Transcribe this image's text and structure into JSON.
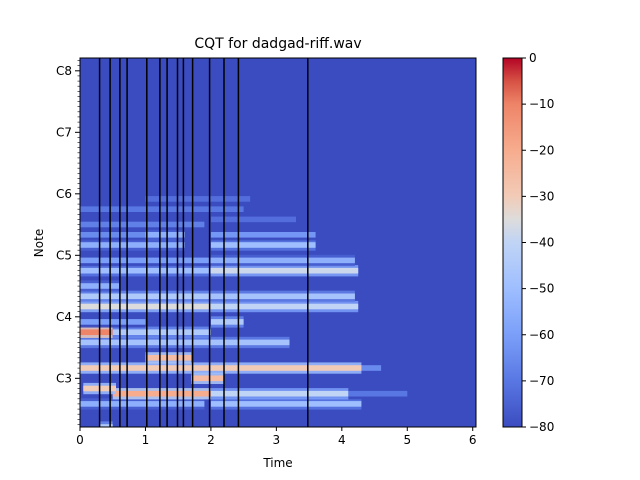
{
  "chart_data": {
    "type": "heatmap",
    "title": "CQT for dadgad-riff.wav",
    "xlabel": "Time",
    "ylabel": "Note",
    "xlim": [
      0,
      6.05
    ],
    "x_ticks": [
      {
        "value": 0,
        "label": "0"
      },
      {
        "value": 1,
        "label": "1"
      },
      {
        "value": 2,
        "label": "2"
      },
      {
        "value": 3,
        "label": "3"
      },
      {
        "value": 4,
        "label": "4"
      },
      {
        "value": 5,
        "label": "5"
      },
      {
        "value": 6,
        "label": "6"
      }
    ],
    "y_ticks": [
      {
        "midi": 48,
        "label": "C3"
      },
      {
        "midi": 60,
        "label": "C4"
      },
      {
        "midi": 72,
        "label": "C5"
      },
      {
        "midi": 84,
        "label": "C6"
      },
      {
        "midi": 96,
        "label": "C7"
      },
      {
        "midi": 108,
        "label": "C8"
      }
    ],
    "ylim_midi": [
      38.5,
      110.5
    ],
    "colorbar": {
      "colormap": "coolwarm",
      "range": [
        -80,
        0
      ],
      "ticks": [
        0,
        -10,
        -20,
        -30,
        -40,
        -50,
        -60,
        -70,
        -80
      ],
      "tick_labels": [
        "0",
        "−10",
        "−20",
        "−30",
        "−40",
        "−50",
        "−60",
        "−70",
        "−80"
      ]
    },
    "onset_markers": [
      0.3,
      0.46,
      0.61,
      0.72,
      1.02,
      1.22,
      1.33,
      1.49,
      1.58,
      1.72,
      1.98,
      2.2,
      2.42,
      3.48
    ],
    "marker_color": "#000000",
    "partials": [
      {
        "midi": 38.5,
        "start": 0.3,
        "end": 0.5,
        "db": -45
      },
      {
        "midi": 43,
        "start": 0.0,
        "end": 1.9,
        "db": -55
      },
      {
        "midi": 43,
        "start": 2.0,
        "end": 4.3,
        "db": -50
      },
      {
        "midi": 45,
        "start": 0.5,
        "end": 2.0,
        "db": -20
      },
      {
        "midi": 45,
        "start": 2.0,
        "end": 4.1,
        "db": -40
      },
      {
        "midi": 45,
        "start": 4.1,
        "end": 5.0,
        "db": -70
      },
      {
        "midi": 46,
        "start": 0.05,
        "end": 0.55,
        "db": -30
      },
      {
        "midi": 48,
        "start": 1.7,
        "end": 2.2,
        "db": -25
      },
      {
        "midi": 50,
        "start": 0.0,
        "end": 2.0,
        "db": -30
      },
      {
        "midi": 50,
        "start": 2.0,
        "end": 4.3,
        "db": -30
      },
      {
        "midi": 50,
        "start": 4.3,
        "end": 4.6,
        "db": -65
      },
      {
        "midi": 52,
        "start": 1.0,
        "end": 1.7,
        "db": -25
      },
      {
        "midi": 55,
        "start": 0.0,
        "end": 3.2,
        "db": -48
      },
      {
        "midi": 57,
        "start": 0.0,
        "end": 0.5,
        "db": -10
      },
      {
        "midi": 57,
        "start": 0.5,
        "end": 2.0,
        "db": -45
      },
      {
        "midi": 59,
        "start": 0.0,
        "end": 1.0,
        "db": -60
      },
      {
        "midi": 59,
        "start": 2.0,
        "end": 2.5,
        "db": -45
      },
      {
        "midi": 62,
        "start": 0.0,
        "end": 2.0,
        "db": -35
      },
      {
        "midi": 62,
        "start": 2.0,
        "end": 4.25,
        "db": -40
      },
      {
        "midi": 64,
        "start": 0.0,
        "end": 2.0,
        "db": -45
      },
      {
        "midi": 64,
        "start": 2.0,
        "end": 4.2,
        "db": -48
      },
      {
        "midi": 66,
        "start": 0.0,
        "end": 0.6,
        "db": -55
      },
      {
        "midi": 69,
        "start": 0.0,
        "end": 2.0,
        "db": -50
      },
      {
        "midi": 69,
        "start": 2.0,
        "end": 4.25,
        "db": -38
      },
      {
        "midi": 71,
        "start": 0.0,
        "end": 2.0,
        "db": -60
      },
      {
        "midi": 71,
        "start": 2.0,
        "end": 4.2,
        "db": -55
      },
      {
        "midi": 74,
        "start": 0.0,
        "end": 1.6,
        "db": -55
      },
      {
        "midi": 74,
        "start": 2.0,
        "end": 3.6,
        "db": -50
      },
      {
        "midi": 76,
        "start": 0.0,
        "end": 1.0,
        "db": -65
      },
      {
        "midi": 76,
        "start": 1.0,
        "end": 1.6,
        "db": -55
      },
      {
        "midi": 76,
        "start": 2.0,
        "end": 3.6,
        "db": -62
      },
      {
        "midi": 78,
        "start": 0.0,
        "end": 1.9,
        "db": -68
      },
      {
        "midi": 79,
        "start": 2.0,
        "end": 3.3,
        "db": -72
      },
      {
        "midi": 81,
        "start": 0.0,
        "end": 2.5,
        "db": -70
      },
      {
        "midi": 83,
        "start": 1.0,
        "end": 2.6,
        "db": -72
      }
    ]
  }
}
